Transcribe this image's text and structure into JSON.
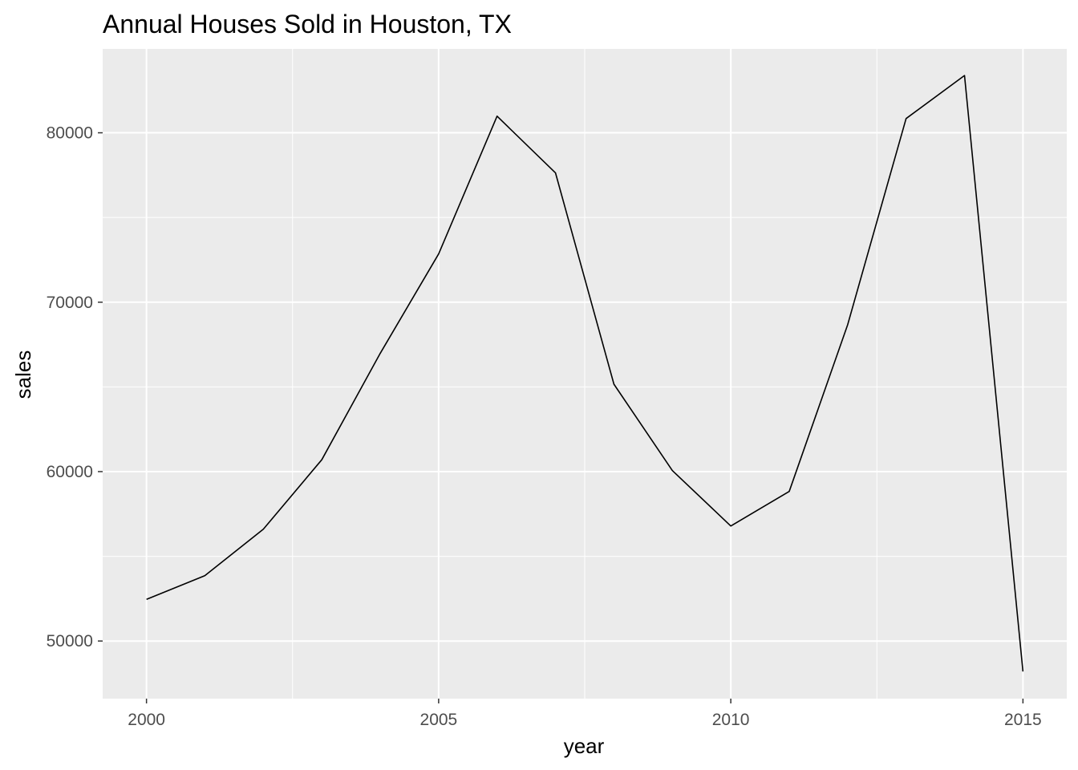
{
  "chart_data": {
    "type": "line",
    "title": "Annual Houses Sold in Houston, TX",
    "xlabel": "year",
    "ylabel": "sales",
    "x": [
      2000,
      2001,
      2002,
      2003,
      2004,
      2005,
      2006,
      2007,
      2008,
      2009,
      2010,
      2011,
      2012,
      2013,
      2014,
      2015
    ],
    "series": [
      {
        "values": [
          52460,
          53860,
          56600,
          60700,
          66980,
          72850,
          80980,
          77630,
          65160,
          60060,
          56790,
          58830,
          68670,
          80840,
          83380,
          48200
        ]
      }
    ],
    "xlim": [
      1999.25,
      2015.75
    ],
    "ylim": [
      46600,
      84950
    ],
    "x_ticks": [
      2000,
      2005,
      2010,
      2015
    ],
    "x_tick_labels": [
      "2000",
      "2005",
      "2010",
      "2015"
    ],
    "y_ticks": [
      50000,
      60000,
      70000,
      80000
    ],
    "y_tick_labels": [
      "50000",
      "60000",
      "70000",
      "80000"
    ],
    "grid": true,
    "line_color": "#000000",
    "panel_background": "#ebebeb",
    "grid_color": "#ffffff"
  }
}
